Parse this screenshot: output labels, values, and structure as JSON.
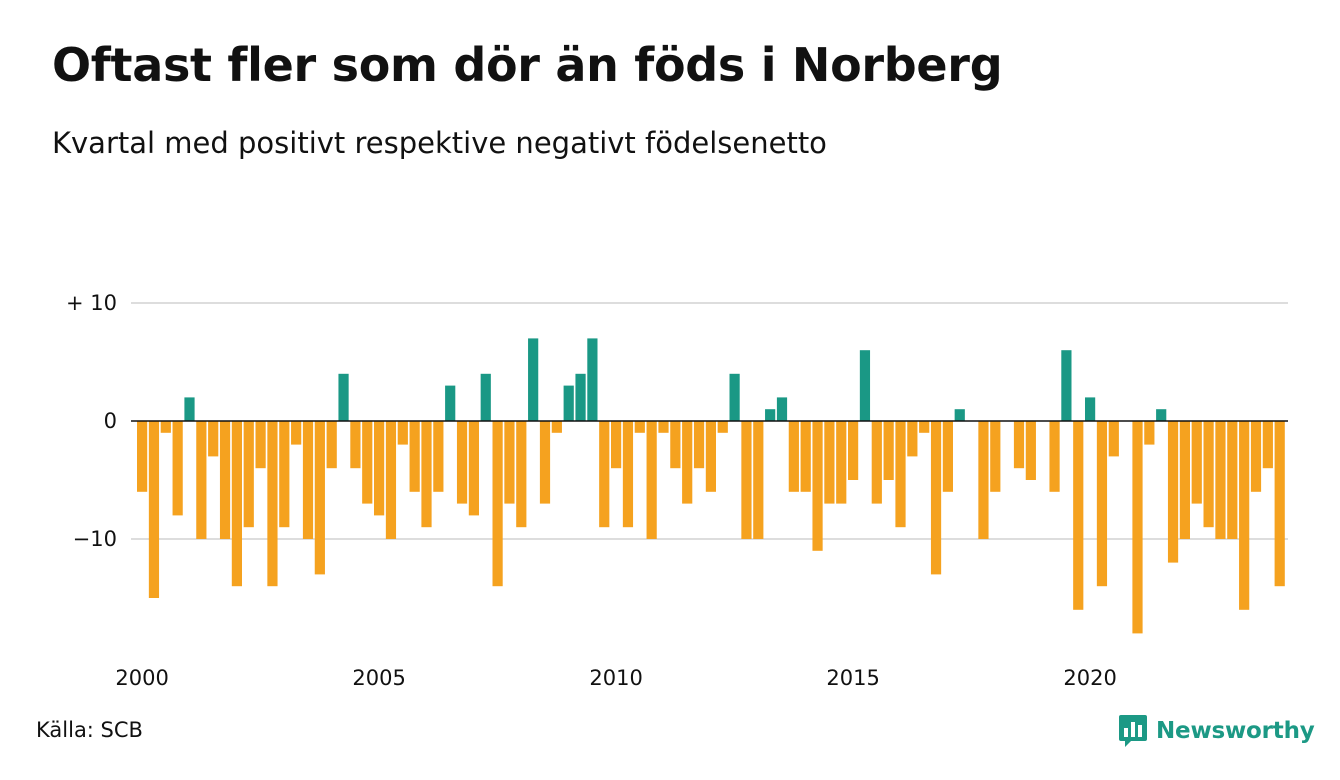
{
  "header": {
    "title": "Oftast fler som dör än föds i Norberg",
    "subtitle": "Kvartal med positivt respektive negativt födelsenetto"
  },
  "footer": {
    "source": "Källa: SCB",
    "brand": "Newsworthy"
  },
  "colors": {
    "positive": "#1a9885",
    "negative": "#f5a21f",
    "grid": "#dddddd",
    "zero_line": "#111111",
    "brand": "#1c9985"
  },
  "chart_data": {
    "type": "bar",
    "title": "Oftast fler som dör än föds i Norberg",
    "subtitle": "Kvartal med positivt respektive negativt födelsenetto",
    "xlabel": "",
    "ylabel": "",
    "ylim": [
      -18,
      10
    ],
    "grid": true,
    "y_ticks": [
      {
        "value": 10,
        "label": "+ 10"
      },
      {
        "value": 0,
        "label": "0"
      },
      {
        "value": -10,
        "label": "−10"
      }
    ],
    "x_ticks": [
      {
        "value": 2000,
        "label": "2000"
      },
      {
        "value": 2005,
        "label": "2005"
      },
      {
        "value": 2010,
        "label": "2010"
      },
      {
        "value": 2015,
        "label": "2015"
      },
      {
        "value": 2020,
        "label": "2020"
      }
    ],
    "x_start": "2000 Q1",
    "frequency": "quarterly",
    "values": [
      -6,
      -15,
      -1,
      -8,
      2,
      -10,
      -3,
      -10,
      -14,
      -9,
      -4,
      -14,
      -9,
      -2,
      -10,
      -13,
      -4,
      4,
      -4,
      -7,
      -8,
      -10,
      -2,
      -6,
      -9,
      -6,
      3,
      -7,
      -8,
      4,
      -14,
      -7,
      -9,
      7,
      -7,
      -1,
      3,
      4,
      7,
      -9,
      -4,
      -9,
      -1,
      -10,
      -1,
      -4,
      -7,
      -4,
      -6,
      -1,
      4,
      -10,
      -10,
      1,
      2,
      -6,
      -6,
      -11,
      -7,
      -7,
      -5,
      6,
      -7,
      -5,
      -9,
      -3,
      -1,
      -13,
      -6,
      1,
      0,
      -10,
      -6,
      0,
      -4,
      -5,
      0,
      -6,
      6,
      -16,
      2,
      -14,
      -3,
      0,
      -18,
      -2,
      1,
      -12,
      -10,
      -7,
      -9,
      -10,
      -10,
      -16,
      -6,
      -4,
      -14
    ]
  }
}
